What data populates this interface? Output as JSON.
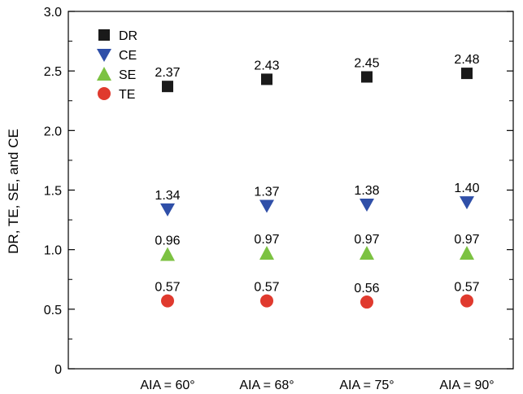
{
  "chart_data": {
    "type": "scatter",
    "title": "",
    "xlabel": "",
    "ylabel": "DR, TE, SE, and CE",
    "categories": [
      "AIA = 60°",
      "AIA = 68°",
      "AIA = 75°",
      "AIA = 90°"
    ],
    "ylim": [
      0,
      3.0
    ],
    "yticks": [
      "0",
      "0.5",
      "1.0",
      "1.5",
      "2.0",
      "2.5",
      "3.0"
    ],
    "grid": false,
    "legend_position": "top-left",
    "series": [
      {
        "name": "DR",
        "marker": "square",
        "color": "#1a1a1a",
        "values": [
          2.37,
          2.43,
          2.45,
          2.48
        ],
        "labels": [
          "2.37",
          "2.43",
          "2.45",
          "2.48"
        ]
      },
      {
        "name": "CE",
        "marker": "triangle-down",
        "color": "#2f4fa8",
        "values": [
          1.34,
          1.37,
          1.38,
          1.4
        ],
        "labels": [
          "1.34",
          "1.37",
          "1.38",
          "1.40"
        ]
      },
      {
        "name": "SE",
        "marker": "triangle-up",
        "color": "#7cc242",
        "values": [
          0.96,
          0.97,
          0.97,
          0.97
        ],
        "labels": [
          "0.96",
          "0.97",
          "0.97",
          "0.97"
        ]
      },
      {
        "name": "TE",
        "marker": "circle",
        "color": "#e03a2e",
        "values": [
          0.57,
          0.57,
          0.56,
          0.57
        ],
        "labels": [
          "0.57",
          "0.57",
          "0.56",
          "0.57"
        ]
      }
    ]
  }
}
